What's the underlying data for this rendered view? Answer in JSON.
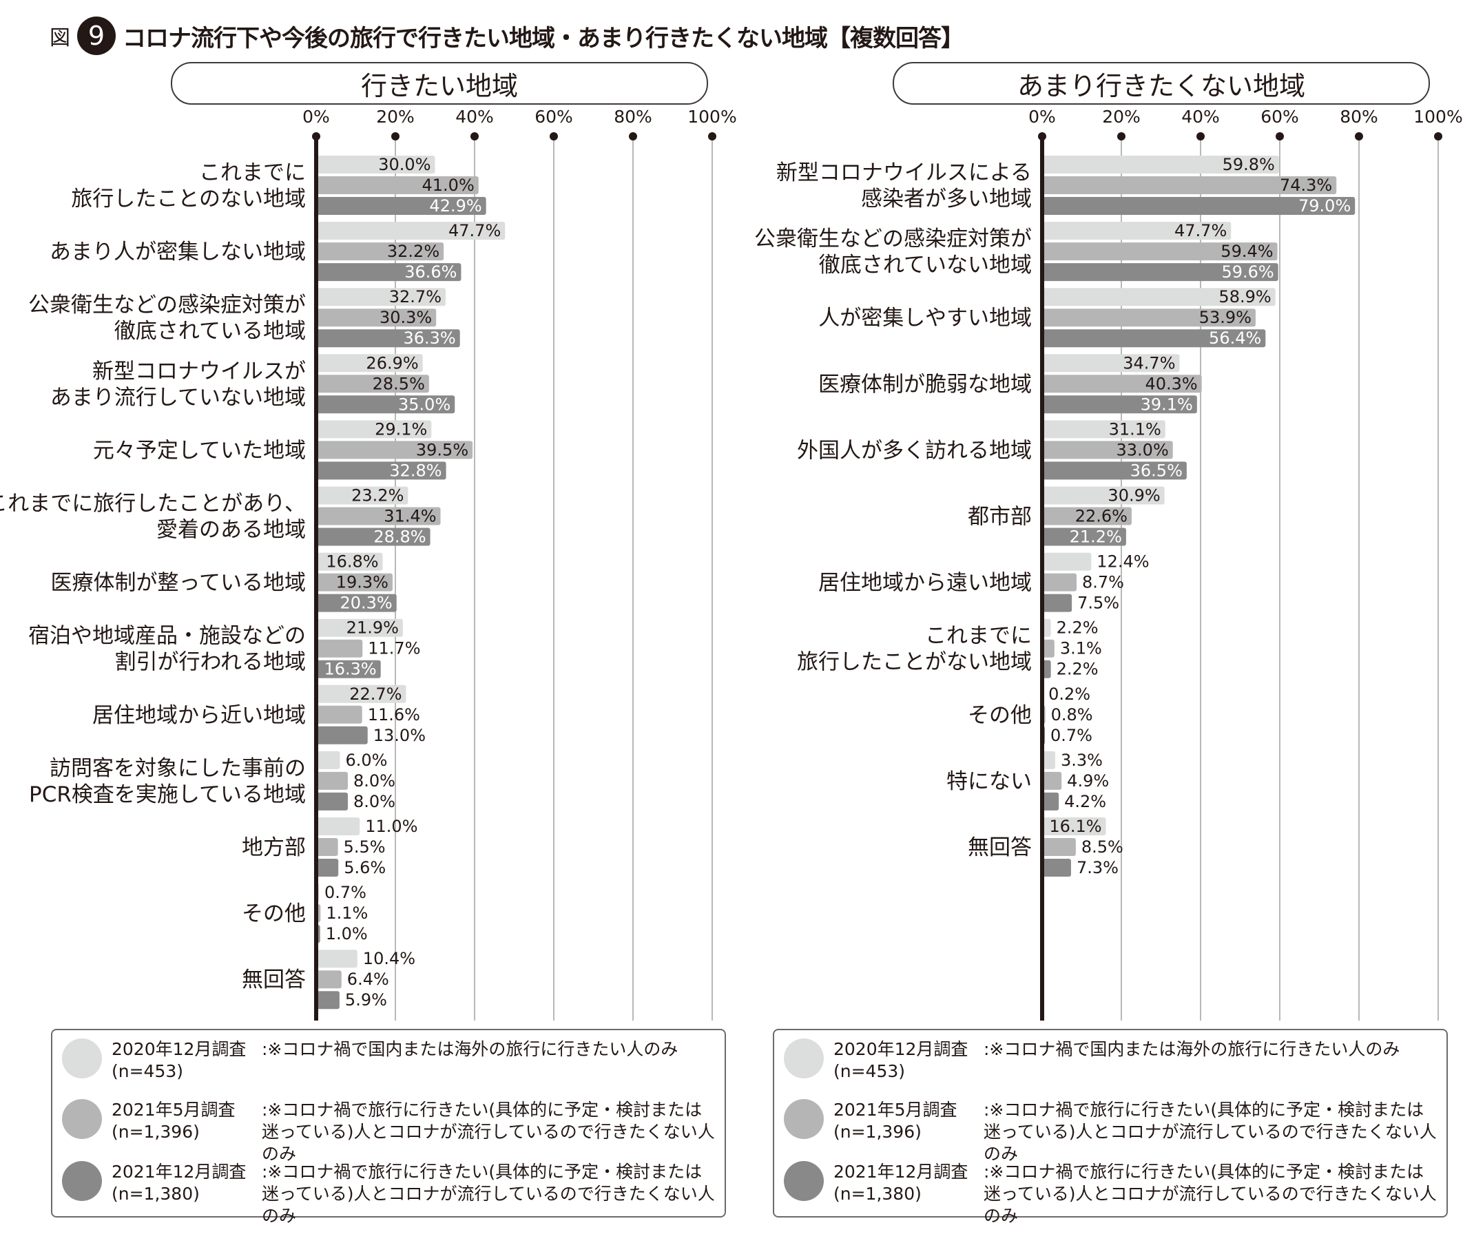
{
  "figure": {
    "prefix": "図",
    "number": "9",
    "title": "コロナ流行下や今後の旅行で行きたい地域・あまり行きたくない地域【複数回答】"
  },
  "legend_colors": [
    "#dcdddd",
    "#b5b5b6",
    "#898989"
  ],
  "legend": [
    {
      "survey": "2020年12月調査",
      "n": "(n=453)",
      "note": ":※コロナ禍で国内または海外の旅行に行きたい人のみ"
    },
    {
      "survey": "2021年5月調査",
      "n": "(n=1,396)",
      "note": ":※コロナ禍で旅行に行きたい(具体的に予定・検討または迷っている)人とコロナが流行しているので行きたくない人のみ"
    },
    {
      "survey": "2021年12月調査",
      "n": "(n=1,380)",
      "note": ":※コロナ禍で旅行に行きたい(具体的に予定・検討または迷っている)人とコロナが流行しているので行きたくない人のみ"
    }
  ],
  "chart_data": [
    {
      "type": "bar",
      "orientation": "horizontal",
      "title": "行きたい地域",
      "xlim": [
        0,
        100
      ],
      "ticks": [
        "0%",
        "20%",
        "40%",
        "60%",
        "80%",
        "100%"
      ],
      "grid": true,
      "categories": [
        [
          "これまでに",
          "旅行したことのない地域"
        ],
        [
          "あまり人が密集しない地域"
        ],
        [
          "公衆衛生などの感染症対策が",
          "徹底されている地域"
        ],
        [
          "新型コロナウイルスが",
          "あまり流行していない地域"
        ],
        [
          "元々予定していた地域"
        ],
        [
          "これまでに旅行したことがあり、",
          "愛着のある地域"
        ],
        [
          "医療体制が整っている地域"
        ],
        [
          "宿泊や地域産品・施設などの",
          "割引が行われる地域"
        ],
        [
          "居住地域から近い地域"
        ],
        [
          "訪問客を対象にした事前の",
          "PCR検査を実施している地域"
        ],
        [
          "地方部"
        ],
        [
          "その他"
        ],
        [
          "無回答"
        ]
      ],
      "series": [
        {
          "name": "2020年12月調査",
          "values": [
            30.0,
            47.7,
            32.7,
            26.9,
            29.1,
            23.2,
            16.8,
            21.9,
            22.7,
            6.0,
            11.0,
            0.7,
            10.4
          ]
        },
        {
          "name": "2021年5月調査",
          "values": [
            41.0,
            32.2,
            30.3,
            28.5,
            39.5,
            31.4,
            19.3,
            11.7,
            11.6,
            8.0,
            5.5,
            1.1,
            6.4
          ]
        },
        {
          "name": "2021年12月調査",
          "values": [
            42.9,
            36.6,
            36.3,
            35.0,
            32.8,
            28.8,
            20.3,
            16.3,
            13.0,
            8.0,
            5.6,
            1.0,
            5.9
          ]
        }
      ]
    },
    {
      "type": "bar",
      "orientation": "horizontal",
      "title": "あまり行きたくない地域",
      "xlim": [
        0,
        100
      ],
      "ticks": [
        "0%",
        "20%",
        "40%",
        "60%",
        "80%",
        "100%"
      ],
      "grid": true,
      "categories": [
        [
          "新型コロナウイルスによる",
          "感染者が多い地域"
        ],
        [
          "公衆衛生などの感染症対策が",
          "徹底されていない地域"
        ],
        [
          "人が密集しやすい地域"
        ],
        [
          "医療体制が脆弱な地域"
        ],
        [
          "外国人が多く訪れる地域"
        ],
        [
          "都市部"
        ],
        [
          "居住地域から遠い地域"
        ],
        [
          "これまでに",
          "旅行したことがない地域"
        ],
        [
          "その他"
        ],
        [
          "特にない"
        ],
        [
          "無回答"
        ]
      ],
      "series": [
        {
          "name": "2020年12月調査",
          "values": [
            59.8,
            47.7,
            58.9,
            34.7,
            31.1,
            30.9,
            12.4,
            2.2,
            0.2,
            3.3,
            16.1
          ]
        },
        {
          "name": "2021年5月調査",
          "values": [
            74.3,
            59.4,
            53.9,
            40.3,
            33.0,
            22.6,
            8.7,
            3.1,
            0.8,
            4.9,
            8.5
          ]
        },
        {
          "name": "2021年12月調査",
          "values": [
            79.0,
            59.6,
            56.4,
            39.1,
            36.5,
            21.2,
            7.5,
            2.2,
            0.7,
            4.2,
            7.3
          ]
        }
      ]
    }
  ]
}
